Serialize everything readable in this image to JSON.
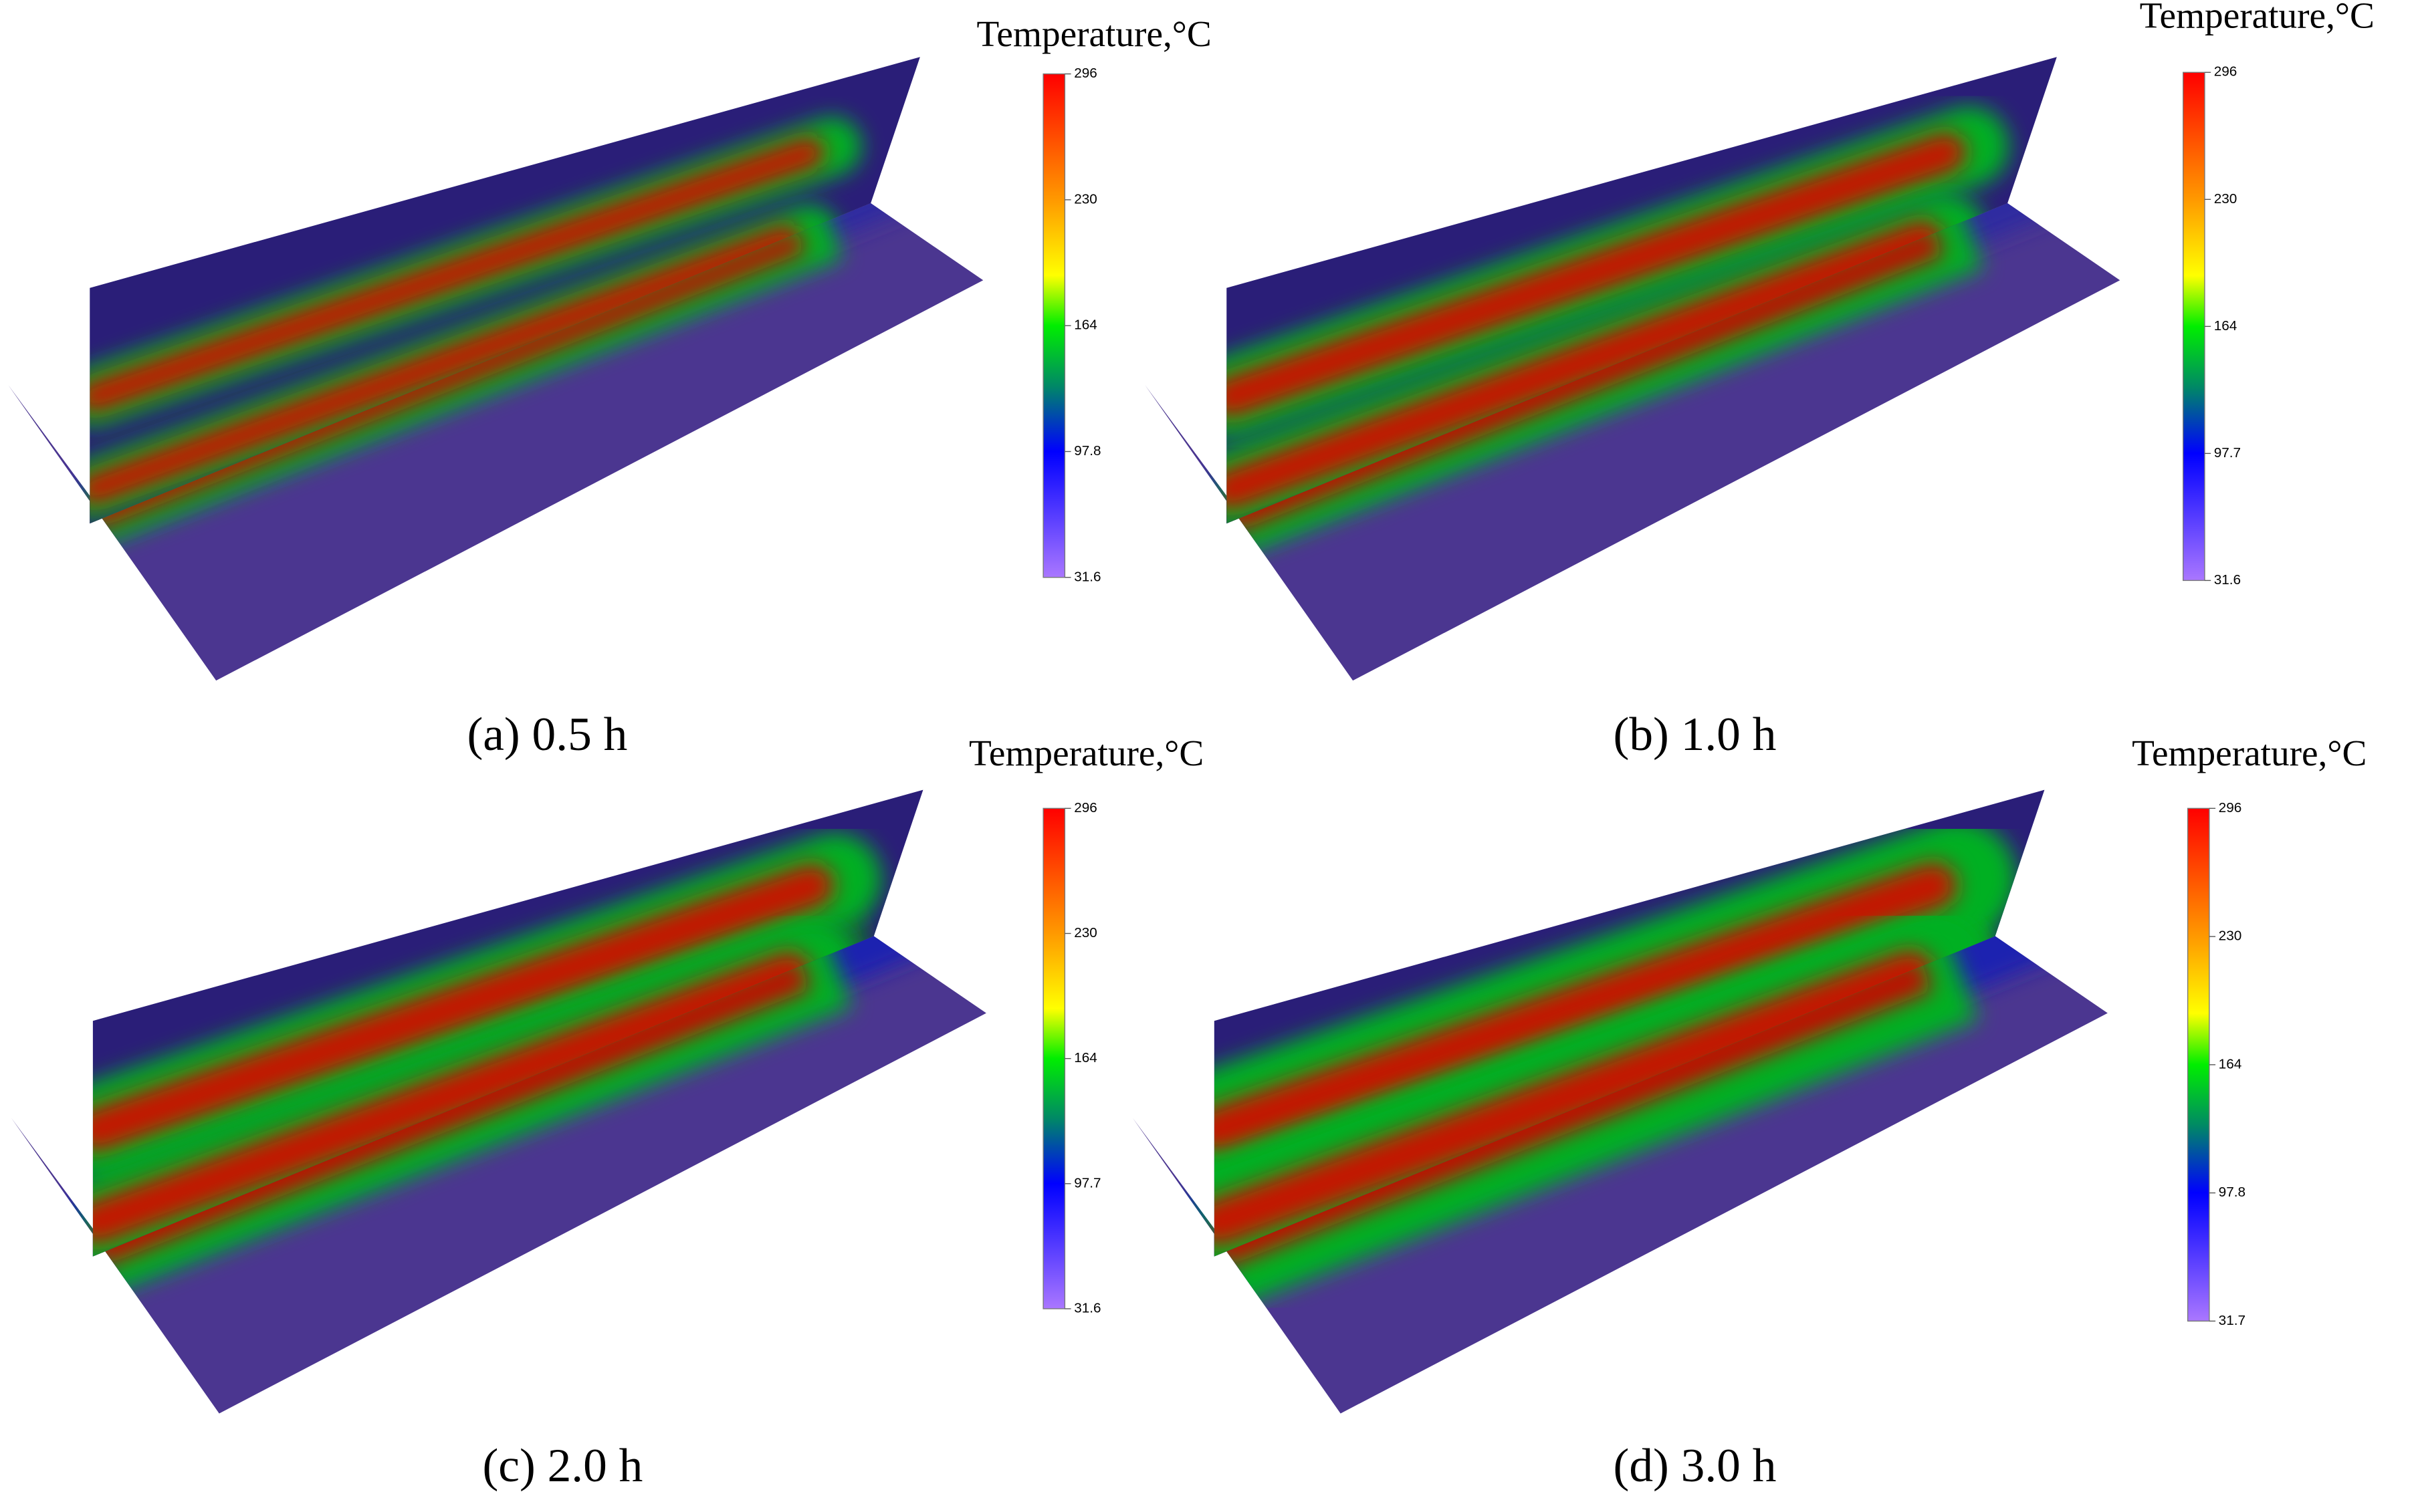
{
  "panels": [
    {
      "caption": "(a) 0.5 h",
      "colorbar": {
        "title": "Temperature,°C",
        "ticks": [
          296,
          230,
          164,
          97.8,
          31.6
        ]
      }
    },
    {
      "caption": "(b) 1.0 h",
      "colorbar": {
        "title": "Temperature,°C",
        "ticks": [
          296,
          230,
          164,
          97.7,
          31.6
        ]
      }
    },
    {
      "caption": "(c) 2.0 h",
      "colorbar": {
        "title": "Temperature,°C",
        "ticks": [
          296,
          230,
          164,
          97.7,
          31.6
        ]
      }
    },
    {
      "caption": "(d) 3.0 h",
      "colorbar": {
        "title": "Temperature,°C",
        "ticks": [
          296,
          230,
          164,
          97.8,
          31.7
        ]
      }
    }
  ]
}
